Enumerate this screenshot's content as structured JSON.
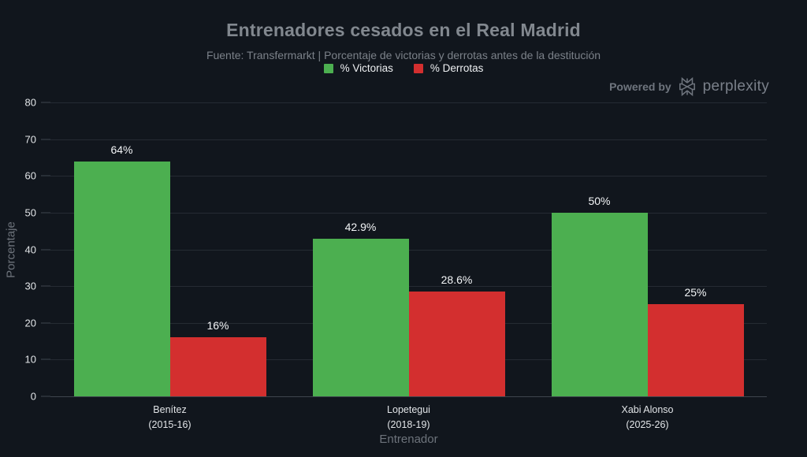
{
  "branding": {
    "powered_by": "Powered by",
    "brand": "perplexity"
  },
  "colors": {
    "background": "#11161d",
    "grid": "#252b33",
    "axis_line": "#3e454e",
    "title": "#82888f",
    "subtitle": "#7b8189",
    "axis_title": "#6d737b",
    "tick_label": "#e2e5e8",
    "value_label": "#f3f5f7",
    "victorias_green": "#4caf50",
    "derrotas_red": "#d32f2f"
  },
  "chart_data": {
    "type": "bar",
    "title": "Entrenadores cesados en el Real Madrid",
    "subtitle": "Fuente: Transfermarkt | Porcentaje de victorias y derrotas antes de la destitución",
    "categories": [
      "Benítez",
      "Lopetegui",
      "Xabi Alonso"
    ],
    "category_sublabels": [
      "(2015-16)",
      "(2018-19)",
      "(2025-26)"
    ],
    "series": [
      {
        "name": "% Victorias",
        "color": "#4caf50",
        "values": [
          64,
          42.9,
          50
        ],
        "labels": [
          "64%",
          "42.9%",
          "50%"
        ]
      },
      {
        "name": "% Derrotas",
        "color": "#d32f2f",
        "values": [
          16,
          28.6,
          25
        ],
        "labels": [
          "16%",
          "28.6%",
          "25%"
        ]
      }
    ],
    "xlabel": "Entrenador",
    "ylabel": "Porcentaje",
    "ylim": [
      0,
      80
    ],
    "yticks": [
      0,
      10,
      20,
      30,
      40,
      50,
      60,
      70,
      80
    ],
    "grid": true,
    "legend_position": "top"
  }
}
